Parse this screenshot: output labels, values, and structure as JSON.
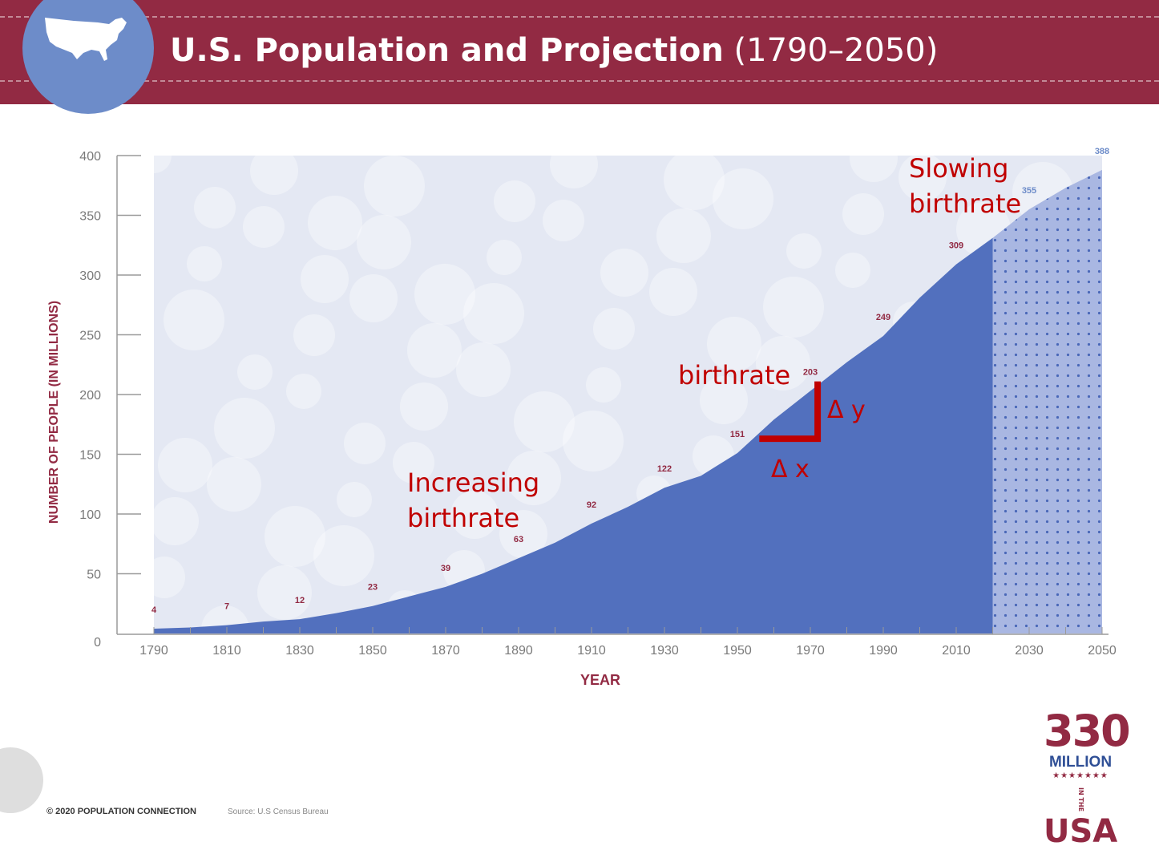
{
  "header": {
    "title_bold": "U.S. Population and Projection",
    "title_rest": "(1790–2050)",
    "icon": "usa-map-icon"
  },
  "chart_data": {
    "type": "area",
    "title": "U.S. Population and Projection (1790–2050)",
    "xlabel": "YEAR",
    "ylabel": "NUMBER OF PEOPLE (IN MILLIONS)",
    "xlim": [
      1790,
      2050
    ],
    "ylim": [
      0,
      400
    ],
    "x_ticks": [
      1790,
      1810,
      1830,
      1850,
      1870,
      1890,
      1910,
      1930,
      1950,
      1970,
      1990,
      2010,
      2030,
      2050
    ],
    "y_ticks": [
      0,
      50,
      100,
      150,
      200,
      250,
      300,
      350,
      400
    ],
    "grid": false,
    "series": [
      {
        "kind": "historical",
        "x": [
          1790,
          1800,
          1810,
          1820,
          1830,
          1840,
          1850,
          1860,
          1870,
          1880,
          1890,
          1900,
          1910,
          1920,
          1930,
          1940,
          1950,
          1960,
          1970,
          1980,
          1990,
          2000,
          2010,
          2020
        ],
        "values": [
          4,
          5,
          7,
          10,
          12,
          17,
          23,
          31,
          39,
          50,
          63,
          76,
          92,
          106,
          122,
          132,
          151,
          179,
          203,
          227,
          249,
          281,
          309,
          331
        ]
      },
      {
        "kind": "projection",
        "x": [
          2020,
          2030,
          2040,
          2050
        ],
        "values": [
          331,
          355,
          373,
          388
        ]
      }
    ],
    "data_labels": [
      {
        "x": 1790,
        "y": 4,
        "text": "4"
      },
      {
        "x": 1810,
        "y": 7,
        "text": "7"
      },
      {
        "x": 1830,
        "y": 12,
        "text": "12"
      },
      {
        "x": 1850,
        "y": 23,
        "text": "23"
      },
      {
        "x": 1870,
        "y": 39,
        "text": "39"
      },
      {
        "x": 1890,
        "y": 63,
        "text": "63"
      },
      {
        "x": 1910,
        "y": 92,
        "text": "92"
      },
      {
        "x": 1930,
        "y": 122,
        "text": "122"
      },
      {
        "x": 1950,
        "y": 151,
        "text": "151"
      },
      {
        "x": 1970,
        "y": 203,
        "text": "203"
      },
      {
        "x": 1990,
        "y": 249,
        "text": "249"
      },
      {
        "x": 2010,
        "y": 309,
        "text": "309"
      },
      {
        "x": 2030,
        "y": 355,
        "text": "355"
      },
      {
        "x": 2050,
        "y": 388,
        "text": "388"
      }
    ],
    "colors": {
      "historical_fill": "#5270be",
      "projection_fill": "#a9b7e2",
      "projection_dots": "#4a68b8",
      "plot_background": "#e4e8f3",
      "label": "#922a43",
      "projection_label": "#6d8cc9",
      "axis": "#9a9a9a"
    }
  },
  "annotations": {
    "increasing_line1": "Increasing",
    "increasing_line2": "birthrate",
    "birthrate": "birthrate",
    "slowing_line1": "Slowing",
    "slowing_line2": "birthrate",
    "delta_y": "Δ y",
    "delta_x": "Δ x",
    "color": "#c00000"
  },
  "footer": {
    "copyright": "© 2020 POPULATION CONNECTION",
    "source": "Source: U.S Census Bureau"
  },
  "logo": {
    "number": "330",
    "word": "MILLION",
    "in_the": "IN THE",
    "country": "USA"
  }
}
